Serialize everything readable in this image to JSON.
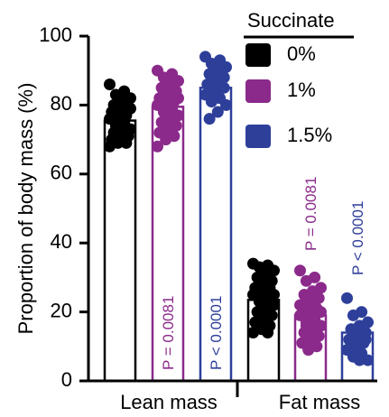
{
  "chart_data": {
    "type": "bar",
    "ylabel": "Proportion of body mass (%)",
    "ylim": [
      0,
      100
    ],
    "yticks": [
      "0",
      "20",
      "40",
      "60",
      "80",
      "100"
    ],
    "categories": [
      "Lean mass",
      "Fat mass"
    ],
    "legend": {
      "title": "Succinate",
      "placement": "top-right",
      "entries": [
        "0%",
        "1%",
        "1.5%"
      ]
    },
    "colors": [
      "#000000",
      "#8b2a8b",
      "#2e3f9a"
    ],
    "series": [
      {
        "name": "0%",
        "values": [
          75.5,
          23.5
        ],
        "points": [
          [
            86,
            84,
            83,
            82,
            81,
            80,
            79,
            78,
            78,
            77,
            76,
            76,
            75,
            74,
            73,
            72,
            72,
            71,
            70,
            70,
            69,
            69,
            68,
            73,
            75,
            79
          ],
          [
            34,
            33.5,
            33,
            32,
            31,
            30,
            29,
            28,
            27,
            27,
            26,
            25,
            24,
            23,
            22,
            21,
            20,
            19,
            18,
            17,
            16,
            15,
            14,
            14,
            28,
            25
          ]
        ]
      },
      {
        "name": "1%",
        "values": [
          79.5,
          19
        ],
        "points": [
          [
            90,
            89,
            88,
            87,
            86,
            85,
            84,
            83,
            82,
            81,
            80,
            80,
            79,
            78,
            77,
            76,
            75,
            74,
            73,
            72,
            71,
            70,
            68,
            84,
            78,
            82
          ],
          [
            32,
            30,
            29,
            27,
            26,
            25,
            24,
            23,
            22,
            21,
            20,
            19,
            18,
            17,
            16,
            15,
            14,
            13,
            12,
            11,
            10,
            9,
            22,
            18,
            16,
            20
          ]
        ],
        "p_label": [
          "P = 0.0081",
          "P = 0.0081"
        ]
      },
      {
        "name": "1.5%",
        "values": [
          85,
          14
        ],
        "points": [
          [
            94,
            93,
            92,
            91,
            90,
            89,
            88,
            87,
            86,
            85,
            84,
            83,
            82,
            81,
            80,
            78,
            76,
            85,
            88
          ],
          [
            24,
            20,
            19,
            17,
            16,
            15,
            14,
            13,
            12,
            11,
            10,
            9,
            8,
            7,
            6,
            6,
            15,
            12
          ]
        ],
        "p_label": [
          "P < 0.0001",
          "P < 0.0001"
        ]
      }
    ]
  }
}
